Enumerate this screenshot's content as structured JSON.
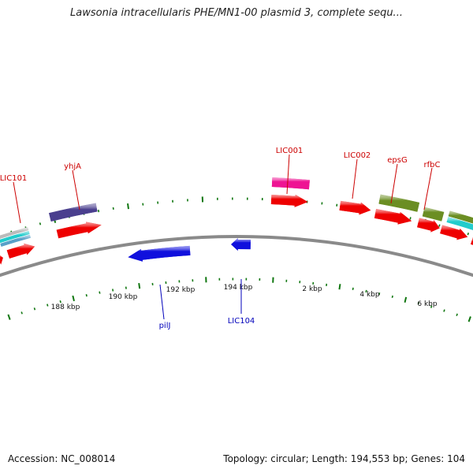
{
  "title": "Lawsonia intracellularis PHE/MN1-00 plasmid 3, complete sequ...",
  "footer": {
    "accession": "Accession: NC_008014",
    "summary": "Topology: circular; Length: 194,553 bp; Genes: 104"
  },
  "colors": {
    "forward_gene": "#ee0000",
    "reverse_gene": "#1010dd",
    "label_forward": "#cc0000",
    "label_reverse": "#0000bb",
    "backbone": "#8a8a8a",
    "tick": "#117711",
    "purple": "#4a3f8e",
    "magenta": "#ee1493",
    "olive": "#6b8e23",
    "cyan": "#22cccc",
    "gray": "#bbbbbb"
  },
  "kbp_labels": [
    "188 kbp",
    "190 kbp",
    "192 kbp",
    "194 kbp",
    "2 kbp",
    "4 kbp",
    "6 kbp"
  ],
  "gene_labels": [
    "LIC101",
    "yhjA",
    "LIC001",
    "LIC002",
    "epsG",
    "rfbC",
    "pilJ",
    "LIC104"
  ]
}
